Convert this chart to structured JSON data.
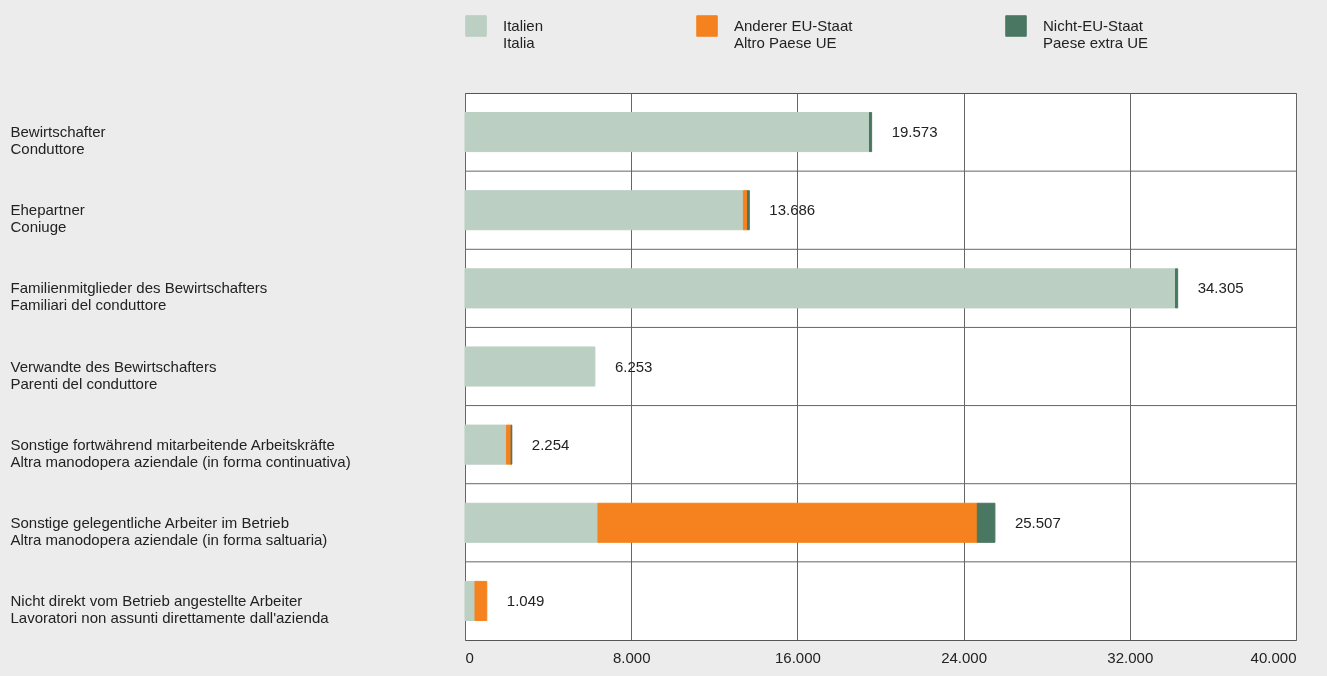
{
  "chart_data": {
    "type": "bar",
    "orientation": "horizontal",
    "stacked": true,
    "categories": [
      "Bewirtschafter\nConduttore",
      "Ehepartner\nConiuge",
      "Familienmitglieder des Bewirtschafters\nFamiliari del conduttore",
      "Verwandte des Bewirtschafters\nParenti del conduttore",
      "Sonstige fortwährend mitarbeitende Arbeitskräfte\nAltra manodopera aziendale (in forma continuativa)",
      "Sonstige gelegentliche Arbeiter im Betrieb\nAltra manodopera aziendale (in forma saltuaria)",
      "Nicht direkt vom Betrieb angestellte Arbeiter\nLavoratori non assunti direttamente dall'azienda"
    ],
    "series": [
      {
        "name": "Italien\nItalia",
        "color": "#bbcfc2",
        "values": [
          19470,
          13400,
          34200,
          6253,
          2000,
          6400,
          480
        ]
      },
      {
        "name": "Anderer EU-Staat\nAltro Paese UE",
        "color": "#f5821f",
        "values": [
          null,
          200,
          null,
          null,
          220,
          18260,
          569
        ]
      },
      {
        "name": "Nicht-EU-Staat\nPaese extra UE",
        "color": "#4a7761",
        "values": [
          103,
          86,
          105,
          null,
          34,
          847,
          null
        ]
      }
    ],
    "totals": [
      "19.573",
      "13.686",
      "34.305",
      "6.253",
      "2.254",
      "25.507",
      "1.049"
    ],
    "xlim": [
      0,
      40000
    ],
    "xticks": [
      0,
      {
        "value": 8000,
        "label": "8.000"
      },
      {
        "value": 16000,
        "label": "16.000"
      },
      {
        "value": 24000,
        "label": "24.000"
      },
      {
        "value": 32000,
        "label": "32.000"
      },
      {
        "value": 40000,
        "label": "40.000"
      }
    ],
    "grid": true,
    "legend": "top"
  }
}
